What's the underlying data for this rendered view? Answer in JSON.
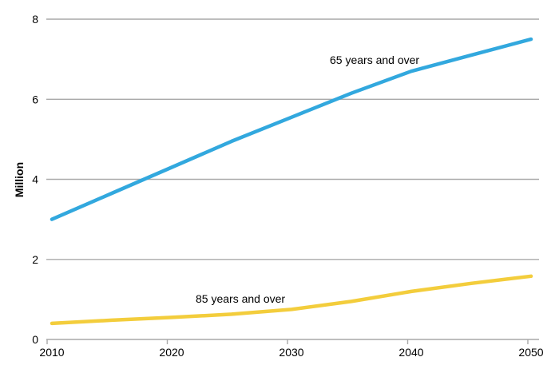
{
  "chart_data": {
    "type": "line",
    "title": "",
    "xlabel": "",
    "ylabel": "Million",
    "x": [
      2010,
      2015,
      2020,
      2025,
      2030,
      2035,
      2040,
      2045,
      2050
    ],
    "series": [
      {
        "name": "65 years and over",
        "color": "#32A8DE",
        "values": [
          3.0,
          3.65,
          4.3,
          4.95,
          5.55,
          6.15,
          6.7,
          7.1,
          7.5
        ]
      },
      {
        "name": "85 years and over",
        "color": "#F3CD3C",
        "values": [
          0.4,
          0.48,
          0.55,
          0.63,
          0.75,
          0.95,
          1.2,
          1.4,
          1.58
        ]
      }
    ],
    "xticks": [
      2010,
      2020,
      2030,
      2040,
      2050
    ],
    "yticks": [
      0,
      2,
      4,
      6,
      8
    ],
    "xlim": [
      2010,
      2050
    ],
    "ylim": [
      0,
      8
    ],
    "grid": "horizontal-only",
    "legend": "inline-annotations",
    "annotations": [
      {
        "text": "65 years and over",
        "year": 2033.2,
        "value": 6.88
      },
      {
        "text": "85 years and over",
        "year": 2022.0,
        "value": 0.92
      }
    ]
  },
  "colors": {
    "background": "#FFFFFF",
    "grid": "#A9A9A9",
    "axis": "#A9A9A9",
    "text": "#000000"
  }
}
